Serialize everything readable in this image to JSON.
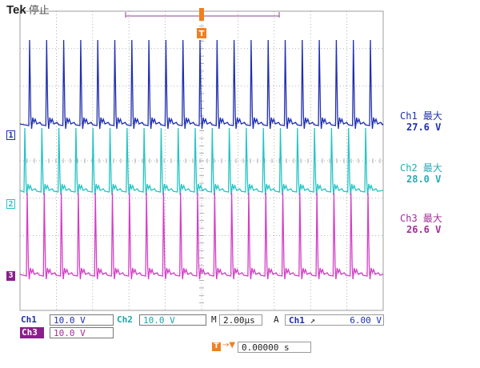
{
  "header": {
    "brand": "Tek",
    "acq_state": "停止"
  },
  "trigger_marker": "T",
  "channels": [
    {
      "id": "ch1",
      "marker": "1",
      "name": "Ch1",
      "stat_label": "最大",
      "stat_value": "27.6 V",
      "scale": "10.0 V",
      "color": "#1f2fb0"
    },
    {
      "id": "ch2",
      "marker": "2",
      "name": "Ch2",
      "stat_label": "最大",
      "stat_value": "28.0 V",
      "scale": "10.0 V",
      "color": "#27c4c4"
    },
    {
      "id": "ch3",
      "marker": "3",
      "name": "Ch3",
      "stat_label": "最大",
      "stat_value": "26.6 V",
      "scale": "10.0 V",
      "color": "#d43fc6"
    }
  ],
  "status_bar": {
    "ch1_label": "Ch1",
    "ch1_scale": "10.0 V",
    "ch2_label": "Ch2",
    "ch2_scale": "10.0 V",
    "ch3_label": "Ch3",
    "ch3_scale": "10.0 V",
    "timebase_prefix": "M",
    "timebase": "2.00μs",
    "trigger_icon": "A",
    "trigger_source": "Ch1",
    "trigger_slope": "rising-edge-icon",
    "trigger_level": "6.00 V",
    "trigger_position": "0.00000 s"
  },
  "colors": {
    "ch1": "#1f2fb0",
    "ch2": "#27c4c4",
    "ch3": "#d43fc6",
    "trigger": "#f08020",
    "grid": "#9c9c9c"
  }
}
